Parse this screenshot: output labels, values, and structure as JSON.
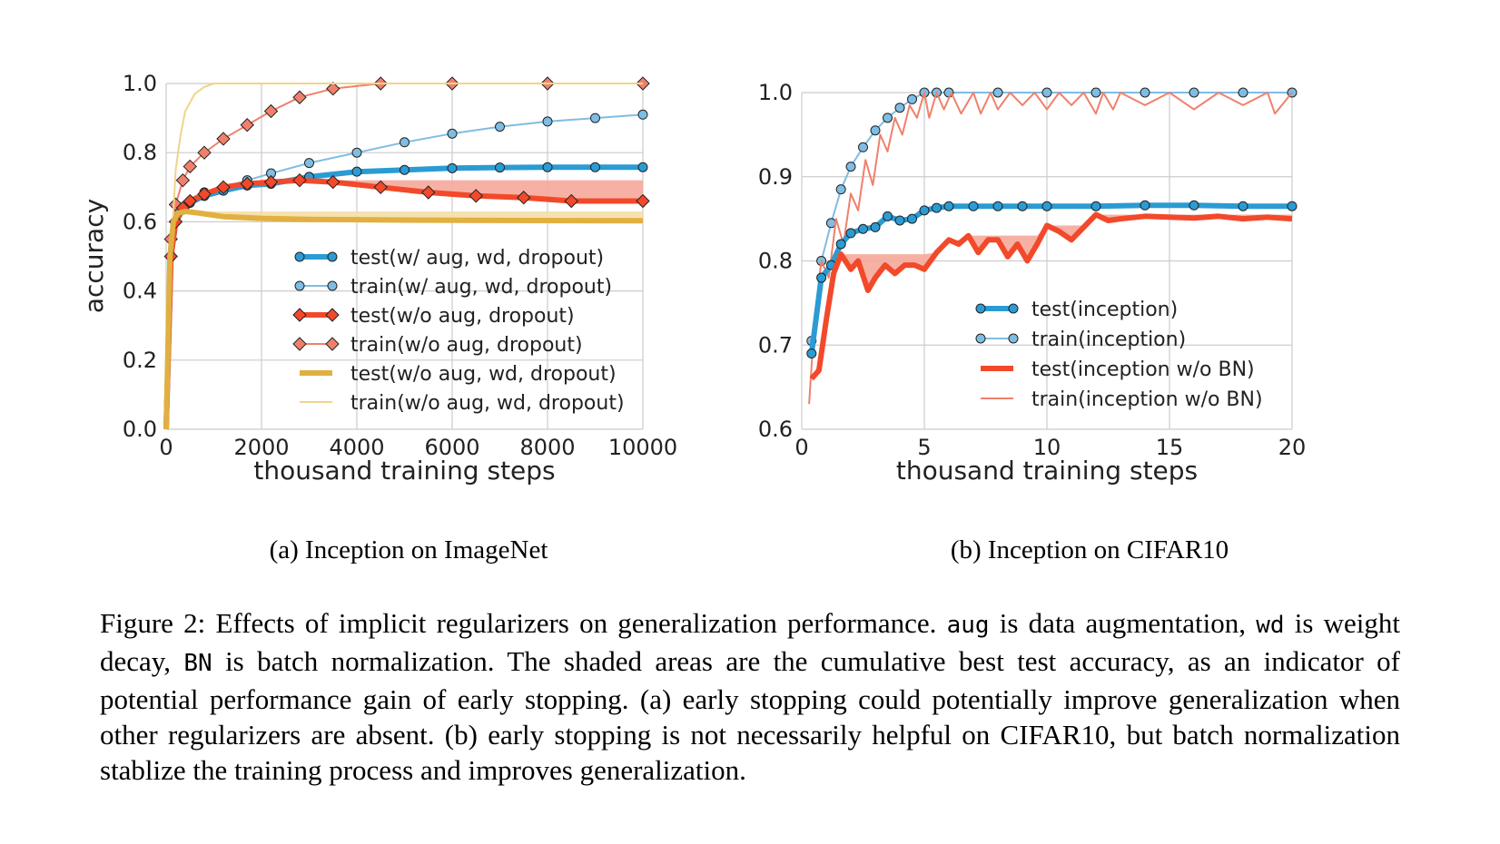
{
  "figure": {
    "caption_label": "Figure 2:",
    "caption_parts": [
      " Effects of implicit regularizers on generalization performance. ",
      "aug",
      " is data augmentation, ",
      "wd",
      " is weight decay, ",
      "BN",
      " is batch normalization. The shaded areas are the cumulative best test accuracy, as an indicator of potential performance gain of early stopping. (a) early stopping could potentially improve generalization when other regularizers are absent. (b) early stopping is not necessarily helpful on CIFAR10, but batch normalization stablize the training process and improves generalization."
    ]
  },
  "colors": {
    "blue": "#2b9bd3",
    "light_blue": "#7fbde2",
    "red": "#f2492b",
    "salmon": "#f0806c",
    "gold": "#e1b040",
    "light_gold": "#f0d48a",
    "shade_red": "#f6a89a",
    "shade_gold": "#f4dfa7",
    "grid": "#cccccc"
  },
  "chart_data": [
    {
      "type": "line",
      "subcaption": "(a) Inception on ImageNet",
      "xlabel": "thousand training steps",
      "ylabel": "accuracy",
      "xlim": [
        0,
        10000
      ],
      "ylim": [
        0,
        1.0
      ],
      "xticks": [
        0,
        2000,
        4000,
        6000,
        8000,
        10000
      ],
      "xtick_labels": [
        "0",
        "2000",
        "4000",
        "6000",
        "8000",
        "10000"
      ],
      "yticks": [
        0,
        0.2,
        0.4,
        0.6,
        0.8,
        1.0
      ],
      "ytick_labels": [
        "0.0",
        "0.2",
        "0.4",
        "0.6",
        "0.8",
        "1.0"
      ],
      "grid": true,
      "legend_position": "lower-right",
      "series": [
        {
          "name": "test(w/ aug, wd, dropout)",
          "style": "thick-marker",
          "color": "#2b9bd3",
          "x": [
            0,
            100,
            200,
            350,
            500,
            800,
            1200,
            1700,
            2200,
            3000,
            4000,
            5000,
            6000,
            7000,
            8000,
            9000,
            10000
          ],
          "y": [
            0,
            0.5,
            0.6,
            0.635,
            0.655,
            0.675,
            0.69,
            0.705,
            0.71,
            0.73,
            0.745,
            0.75,
            0.755,
            0.757,
            0.758,
            0.758,
            0.758
          ]
        },
        {
          "name": "train(w/ aug, wd, dropout)",
          "style": "thin-marker",
          "color": "#7fbde2",
          "x": [
            0,
            100,
            200,
            350,
            500,
            800,
            1200,
            1700,
            2200,
            3000,
            4000,
            5000,
            6000,
            7000,
            8000,
            9000,
            10000
          ],
          "y": [
            0,
            0.5,
            0.6,
            0.64,
            0.66,
            0.685,
            0.7,
            0.72,
            0.74,
            0.77,
            0.8,
            0.83,
            0.855,
            0.875,
            0.89,
            0.9,
            0.91
          ]
        },
        {
          "name": "test(w/o aug, dropout)",
          "style": "thick-marker",
          "color": "#f2492b",
          "x": [
            0,
            100,
            200,
            350,
            500,
            800,
            1200,
            1700,
            2200,
            2800,
            3500,
            4500,
            5500,
            6500,
            7500,
            8500,
            10000
          ],
          "y": [
            0,
            0.5,
            0.6,
            0.64,
            0.66,
            0.68,
            0.7,
            0.71,
            0.715,
            0.72,
            0.715,
            0.7,
            0.685,
            0.675,
            0.67,
            0.66,
            0.66
          ]
        },
        {
          "name": "train(w/o aug, dropout)",
          "style": "thin-marker",
          "color": "#f0806c",
          "x": [
            0,
            100,
            200,
            350,
            500,
            800,
            1200,
            1700,
            2200,
            2800,
            3500,
            4500,
            6000,
            8000,
            10000
          ],
          "y": [
            0,
            0.55,
            0.65,
            0.72,
            0.76,
            0.8,
            0.84,
            0.88,
            0.92,
            0.96,
            0.985,
            1.0,
            1.0,
            1.0,
            1.0
          ]
        },
        {
          "name": "test(w/o aug, wd, dropout)",
          "style": "thick",
          "color": "#e1b040",
          "x": [
            0,
            80,
            150,
            250,
            400,
            700,
            1200,
            2000,
            3000,
            5000,
            7000,
            10000
          ],
          "y": [
            0,
            0.5,
            0.6,
            0.625,
            0.63,
            0.625,
            0.615,
            0.61,
            0.607,
            0.605,
            0.604,
            0.603
          ]
        },
        {
          "name": "train(w/o aug, wd, dropout)",
          "style": "thin",
          "color": "#f0d48a",
          "x": [
            0,
            100,
            200,
            300,
            400,
            600,
            800,
            1000,
            1200,
            10000
          ],
          "y": [
            0,
            0.5,
            0.75,
            0.85,
            0.92,
            0.97,
            0.99,
            1.0,
            1.0,
            1.0
          ]
        }
      ]
    },
    {
      "type": "line",
      "subcaption": "(b) Inception on CIFAR10",
      "xlabel": "thousand training steps",
      "ylabel": "accuracy",
      "xlim": [
        0,
        20
      ],
      "ylim": [
        0.6,
        1.0
      ],
      "xticks": [
        0,
        5,
        10,
        15,
        20
      ],
      "xtick_labels": [
        "0",
        "5",
        "10",
        "15",
        "20"
      ],
      "yticks": [
        0.6,
        0.7,
        0.8,
        0.9,
        1.0
      ],
      "ytick_labels": [
        "0.6",
        "0.7",
        "0.8",
        "0.9",
        "1.0"
      ],
      "grid": true,
      "legend_position": "lower-right",
      "series": [
        {
          "name": "test(inception)",
          "style": "thick-marker",
          "color": "#2b9bd3",
          "x": [
            0.4,
            0.8,
            1.2,
            1.6,
            2,
            2.5,
            3,
            3.5,
            4,
            4.5,
            5,
            5.5,
            6,
            7,
            8,
            9,
            10,
            12,
            14,
            16,
            18,
            20
          ],
          "y": [
            0.69,
            0.78,
            0.795,
            0.82,
            0.833,
            0.838,
            0.84,
            0.853,
            0.848,
            0.85,
            0.86,
            0.863,
            0.865,
            0.865,
            0.865,
            0.865,
            0.865,
            0.865,
            0.866,
            0.866,
            0.865,
            0.865
          ]
        },
        {
          "name": "train(inception)",
          "style": "thin-marker",
          "color": "#7fbde2",
          "x": [
            0.4,
            0.8,
            1.2,
            1.6,
            2,
            2.5,
            3,
            3.5,
            4,
            4.5,
            5,
            5.5,
            6,
            8,
            10,
            12,
            14,
            16,
            18,
            20
          ],
          "y": [
            0.705,
            0.8,
            0.845,
            0.885,
            0.912,
            0.935,
            0.955,
            0.97,
            0.982,
            0.992,
            1.0,
            1.0,
            1.0,
            1.0,
            1.0,
            1.0,
            1.0,
            1.0,
            1.0,
            1.0
          ]
        },
        {
          "name": "test(inception w/o BN)",
          "style": "thick",
          "color": "#f2492b",
          "x": [
            0.4,
            0.7,
            1,
            1.3,
            1.6,
            2,
            2.3,
            2.7,
            3,
            3.4,
            3.8,
            4.2,
            4.6,
            5,
            5.5,
            6,
            6.4,
            6.8,
            7.2,
            7.6,
            8,
            8.4,
            8.8,
            9.2,
            9.6,
            10,
            10.5,
            11,
            11.5,
            12,
            12.5,
            13,
            14,
            15,
            16,
            17,
            18,
            19,
            20
          ],
          "y": [
            0.66,
            0.67,
            0.73,
            0.785,
            0.808,
            0.79,
            0.8,
            0.765,
            0.78,
            0.795,
            0.785,
            0.795,
            0.795,
            0.79,
            0.81,
            0.825,
            0.82,
            0.83,
            0.81,
            0.825,
            0.825,
            0.805,
            0.82,
            0.8,
            0.82,
            0.842,
            0.835,
            0.825,
            0.84,
            0.855,
            0.848,
            0.85,
            0.853,
            0.852,
            0.851,
            0.853,
            0.85,
            0.852,
            0.85
          ]
        },
        {
          "name": "train(inception w/o BN)",
          "style": "thin",
          "color": "#f0806c",
          "x": [
            0.3,
            0.5,
            0.8,
            1.1,
            1.4,
            1.7,
            2,
            2.3,
            2.6,
            2.9,
            3.2,
            3.5,
            3.8,
            4.1,
            4.4,
            4.7,
            5,
            5.2,
            5.5,
            5.8,
            6.1,
            6.5,
            7,
            7.3,
            7.7,
            8,
            8.5,
            9,
            9.5,
            10,
            10.5,
            11,
            11.5,
            12,
            12.3,
            12.7,
            13,
            14,
            15,
            16,
            17,
            18,
            19,
            19.3,
            20
          ],
          "y": [
            0.63,
            0.72,
            0.8,
            0.78,
            0.85,
            0.82,
            0.88,
            0.86,
            0.92,
            0.89,
            0.95,
            0.93,
            0.97,
            0.95,
            0.985,
            0.97,
            1.0,
            0.97,
            1.0,
            0.98,
            1.0,
            0.975,
            1.0,
            0.975,
            1.0,
            0.98,
            1.0,
            0.985,
            1.0,
            0.98,
            1.0,
            0.985,
            1.0,
            0.975,
            1.0,
            0.98,
            1.0,
            0.985,
            1.0,
            0.98,
            1.0,
            0.985,
            1.0,
            0.975,
            1.0
          ]
        }
      ]
    }
  ]
}
